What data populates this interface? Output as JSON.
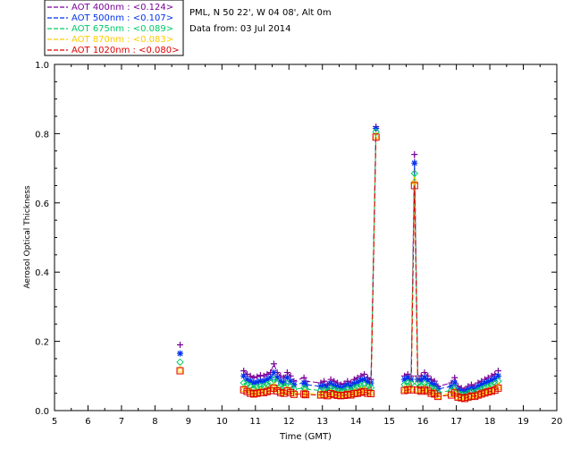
{
  "header": {
    "site_line": "PML, N 50 22', W 04 08', Alt 0m",
    "date_line": "Data from: 03 Jul 2014"
  },
  "chart_data": {
    "type": "line",
    "xlabel": "Time (GMT)",
    "ylabel": "Aerosol Optical Thickness",
    "xlim": [
      5,
      20
    ],
    "ylim": [
      0,
      1.0
    ],
    "xticks": [
      5,
      6,
      7,
      8,
      9,
      10,
      11,
      12,
      13,
      14,
      15,
      16,
      17,
      18,
      19,
      20
    ],
    "yticks": [
      "0.0",
      "0.2",
      "0.4",
      "0.6",
      "0.8",
      "1.0"
    ],
    "legend_position": "top-left",
    "x": [
      8.75,
      10.65,
      10.75,
      10.85,
      10.95,
      11.05,
      11.15,
      11.25,
      11.35,
      11.45,
      11.55,
      11.65,
      11.75,
      11.85,
      11.95,
      12.05,
      12.15,
      12.45,
      12.5,
      12.95,
      13.05,
      13.15,
      13.25,
      13.35,
      13.45,
      13.55,
      13.65,
      13.75,
      13.85,
      13.95,
      14.05,
      14.15,
      14.25,
      14.35,
      14.45,
      14.6,
      15.45,
      15.55,
      15.65,
      15.75,
      15.85,
      15.95,
      16.05,
      16.15,
      16.25,
      16.35,
      16.45,
      16.85,
      16.95,
      17.05,
      17.15,
      17.25,
      17.35,
      17.45,
      17.55,
      17.65,
      17.75,
      17.85,
      17.95,
      18.05,
      18.15,
      18.25
    ],
    "series": [
      {
        "name": "AOT  400nm : <0.124>",
        "color": "#7a0099",
        "marker": "plus",
        "values": [
          0.19,
          0.115,
          0.105,
          0.1,
          0.095,
          0.098,
          0.102,
          0.1,
          0.105,
          0.11,
          0.135,
          0.11,
          0.1,
          0.095,
          0.11,
          0.1,
          0.085,
          0.095,
          0.085,
          0.08,
          0.085,
          0.075,
          0.09,
          0.085,
          0.08,
          0.075,
          0.078,
          0.085,
          0.08,
          0.09,
          0.095,
          0.1,
          0.105,
          0.095,
          0.09,
          0.82,
          0.1,
          0.105,
          0.1,
          0.74,
          0.1,
          0.1,
          0.11,
          0.1,
          0.09,
          0.085,
          0.07,
          0.08,
          0.095,
          0.07,
          0.065,
          0.06,
          0.07,
          0.075,
          0.07,
          0.08,
          0.085,
          0.09,
          0.095,
          0.1,
          0.105,
          0.115
        ]
      },
      {
        "name": "AOT  500nm : <0.107>",
        "color": "#0033ee",
        "marker": "star",
        "values": [
          0.165,
          0.1,
          0.09,
          0.085,
          0.08,
          0.082,
          0.085,
          0.085,
          0.09,
          0.095,
          0.11,
          0.095,
          0.085,
          0.08,
          0.095,
          0.085,
          0.075,
          0.08,
          0.075,
          0.07,
          0.072,
          0.065,
          0.078,
          0.072,
          0.07,
          0.065,
          0.068,
          0.075,
          0.07,
          0.078,
          0.082,
          0.088,
          0.09,
          0.083,
          0.08,
          0.815,
          0.09,
          0.095,
          0.09,
          0.715,
          0.09,
          0.088,
          0.095,
          0.088,
          0.078,
          0.075,
          0.062,
          0.07,
          0.08,
          0.06,
          0.057,
          0.053,
          0.06,
          0.065,
          0.062,
          0.07,
          0.075,
          0.08,
          0.083,
          0.088,
          0.092,
          0.1
        ]
      },
      {
        "name": "AOT  675nm : <0.089>",
        "color": "#00cc66",
        "marker": "diamond",
        "values": [
          0.14,
          0.08,
          0.075,
          0.07,
          0.065,
          0.068,
          0.07,
          0.07,
          0.075,
          0.08,
          0.09,
          0.078,
          0.07,
          0.068,
          0.078,
          0.07,
          0.062,
          0.065,
          0.062,
          0.058,
          0.06,
          0.055,
          0.065,
          0.06,
          0.058,
          0.055,
          0.057,
          0.062,
          0.058,
          0.065,
          0.068,
          0.072,
          0.075,
          0.068,
          0.066,
          0.805,
          0.075,
          0.08,
          0.078,
          0.685,
          0.078,
          0.072,
          0.078,
          0.072,
          0.065,
          0.062,
          0.052,
          0.058,
          0.066,
          0.05,
          0.047,
          0.045,
          0.05,
          0.054,
          0.052,
          0.058,
          0.062,
          0.066,
          0.069,
          0.073,
          0.077,
          0.085
        ]
      },
      {
        "name": "AOT  870nm : <0.083>",
        "color": "#ffcc00",
        "marker": "triangle",
        "values": [
          0.12,
          0.065,
          0.06,
          0.056,
          0.053,
          0.055,
          0.057,
          0.057,
          0.061,
          0.065,
          0.072,
          0.063,
          0.057,
          0.055,
          0.063,
          0.057,
          0.051,
          0.053,
          0.05,
          0.048,
          0.05,
          0.046,
          0.053,
          0.05,
          0.048,
          0.046,
          0.047,
          0.051,
          0.048,
          0.053,
          0.055,
          0.058,
          0.06,
          0.055,
          0.054,
          0.795,
          0.062,
          0.065,
          0.064,
          0.665,
          0.063,
          0.06,
          0.064,
          0.06,
          0.054,
          0.052,
          0.044,
          0.049,
          0.055,
          0.042,
          0.04,
          0.038,
          0.042,
          0.045,
          0.044,
          0.049,
          0.052,
          0.055,
          0.058,
          0.061,
          0.064,
          0.07
        ]
      },
      {
        "name": "AOT 1020nm : <0.080>",
        "color": "#dd0000",
        "marker": "square",
        "values": [
          0.115,
          0.06,
          0.055,
          0.05,
          0.048,
          0.05,
          0.052,
          0.052,
          0.055,
          0.058,
          0.065,
          0.057,
          0.052,
          0.05,
          0.057,
          0.052,
          0.047,
          0.048,
          0.046,
          0.045,
          0.046,
          0.043,
          0.049,
          0.046,
          0.044,
          0.043,
          0.044,
          0.047,
          0.045,
          0.049,
          0.05,
          0.053,
          0.055,
          0.05,
          0.049,
          0.79,
          0.058,
          0.06,
          0.06,
          0.65,
          0.059,
          0.056,
          0.06,
          0.056,
          0.05,
          0.048,
          0.041,
          0.045,
          0.051,
          0.039,
          0.037,
          0.035,
          0.039,
          0.042,
          0.041,
          0.045,
          0.048,
          0.051,
          0.054,
          0.056,
          0.059,
          0.065
        ]
      }
    ]
  }
}
